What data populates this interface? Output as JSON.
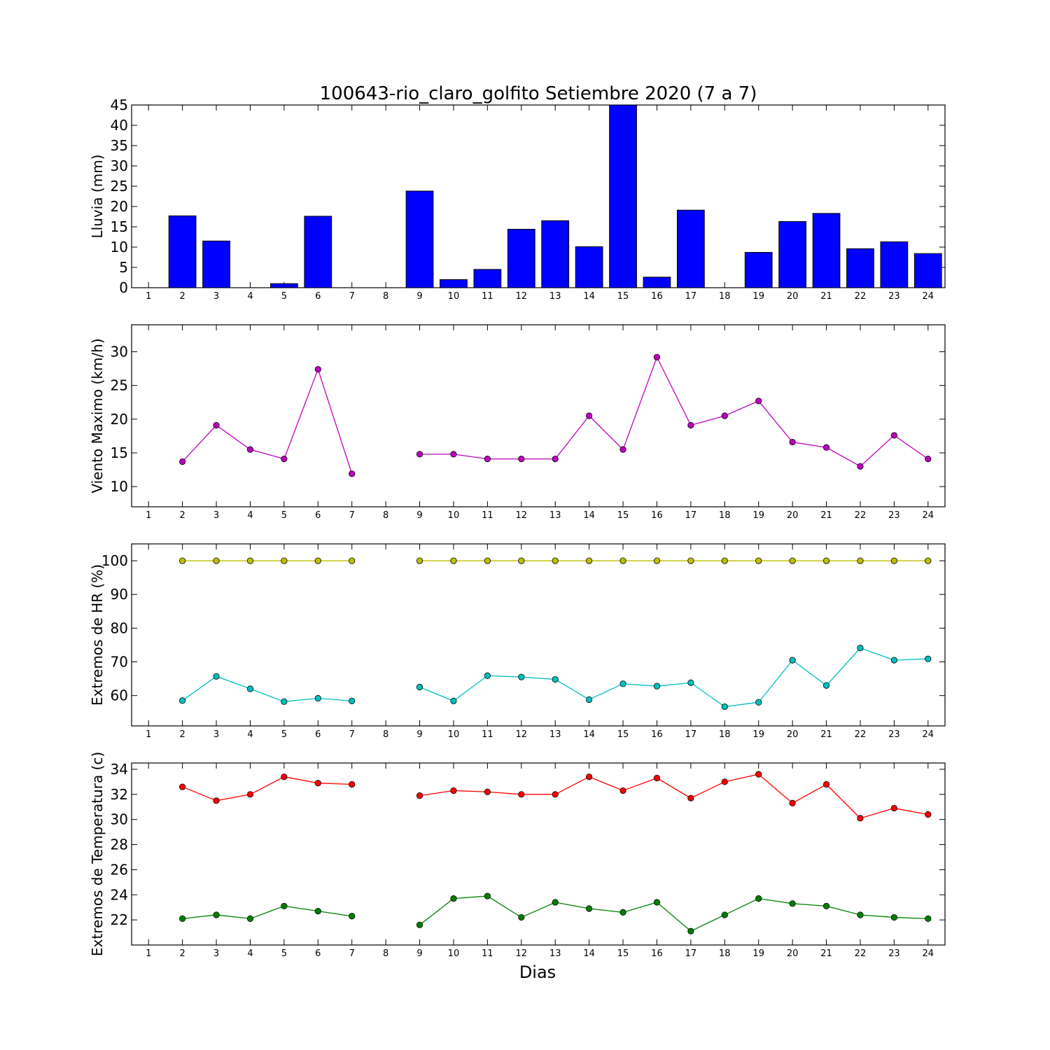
{
  "chart_data": {
    "title": "100643-rio_claro_golfito Setiembre 2020  (7 a 7)",
    "xlabel": "Dias",
    "days": [
      1,
      2,
      3,
      4,
      5,
      6,
      7,
      8,
      9,
      10,
      11,
      12,
      13,
      14,
      15,
      16,
      17,
      18,
      19,
      20,
      21,
      22,
      23,
      24
    ],
    "xlim": [
      0.5,
      24.5
    ],
    "panels": [
      {
        "type": "bar",
        "ylabel": "Lluvia (mm)",
        "ylim": [
          0,
          45
        ],
        "yticks": [
          0,
          5,
          10,
          15,
          20,
          25,
          30,
          35,
          40,
          45
        ],
        "color": "#0000ff",
        "series": [
          {
            "values": [
              0,
              17.7,
              11.5,
              0,
              1.0,
              17.6,
              0,
              0,
              23.8,
              2.0,
              4.5,
              14.4,
              16.5,
              10.1,
              45.0,
              2.6,
              19.1,
              0,
              8.7,
              16.3,
              18.3,
              9.6,
              11.3,
              8.4
            ]
          }
        ]
      },
      {
        "type": "line",
        "ylabel": "Viento Maximo (km/h)",
        "ylim": [
          7,
          34
        ],
        "yticks": [
          10,
          15,
          20,
          25,
          30
        ],
        "series": [
          {
            "color": "#bf00bf",
            "values": [
              null,
              13.7,
              19.1,
              15.5,
              14.1,
              27.4,
              11.9,
              null,
              14.8,
              14.8,
              14.1,
              14.1,
              14.1,
              20.5,
              15.5,
              29.2,
              19.1,
              20.5,
              22.7,
              16.6,
              15.8,
              13.0,
              17.6,
              14.1
            ]
          }
        ]
      },
      {
        "type": "line",
        "ylabel": "Extremos de HR (%)",
        "ylim": [
          51,
          105
        ],
        "yticks": [
          60,
          70,
          80,
          90,
          100
        ],
        "series": [
          {
            "color": "#bfbf00",
            "values": [
              null,
              100,
              100,
              100,
              100,
              100,
              100,
              null,
              100,
              100,
              100,
              100,
              100,
              100,
              100,
              100,
              100,
              100,
              100,
              100,
              100,
              100,
              100,
              100
            ]
          },
          {
            "color": "#00bfbf",
            "values": [
              null,
              58.5,
              65.7,
              62.0,
              58.2,
              59.2,
              58.4,
              null,
              62.5,
              58.4,
              65.9,
              65.5,
              64.8,
              58.8,
              63.5,
              62.8,
              63.8,
              56.7,
              58.0,
              70.5,
              63.0,
              74.1,
              70.5,
              70.9
            ]
          }
        ]
      },
      {
        "type": "line",
        "ylabel": "Extremos de Temperatura (c)",
        "ylim": [
          20,
          34.5
        ],
        "yticks": [
          22,
          24,
          26,
          28,
          30,
          32,
          34
        ],
        "series": [
          {
            "color": "#ff0000",
            "values": [
              null,
              32.6,
              31.5,
              32.0,
              33.4,
              32.9,
              32.8,
              null,
              31.9,
              32.3,
              32.2,
              32.0,
              32.0,
              33.4,
              32.3,
              33.3,
              31.7,
              33.0,
              33.6,
              31.3,
              32.8,
              30.1,
              30.9,
              30.4
            ]
          },
          {
            "color": "#008000",
            "values": [
              null,
              22.1,
              22.4,
              22.1,
              23.1,
              22.7,
              22.3,
              null,
              21.6,
              23.7,
              23.9,
              22.2,
              23.4,
              22.9,
              22.6,
              23.4,
              21.1,
              22.4,
              23.7,
              23.3,
              23.1,
              22.4,
              22.2,
              22.1
            ]
          }
        ]
      }
    ]
  }
}
